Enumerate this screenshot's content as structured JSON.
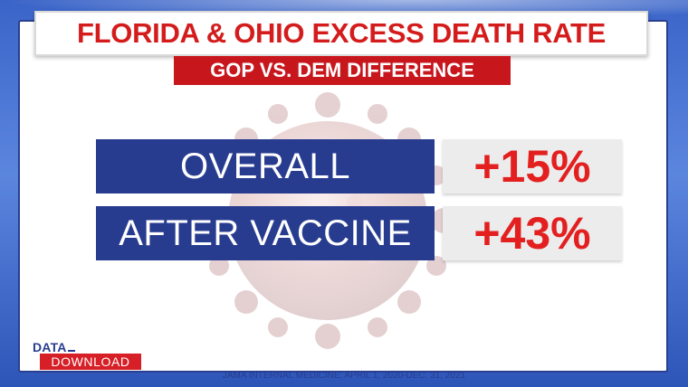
{
  "title": "FLORIDA & OHIO EXCESS DEATH RATE",
  "subtitle": "GOP VS. DEM DIFFERENCE",
  "rows": [
    {
      "label": "OVERALL",
      "value": "+15%"
    },
    {
      "label": "AFTER VACCINE",
      "value": "+43%"
    }
  ],
  "logo": {
    "top": "DATA",
    "bottom": "DOWNLOAD"
  },
  "source": "JAMA INTERNAL MEDICINE; APRIL 1, 2020-DEC. 31, 2021",
  "colors": {
    "accent_red": "#d41c1c",
    "navy": "#283c8f",
    "value_red": "#e31f1f",
    "background_blue": "#3a64c8"
  }
}
